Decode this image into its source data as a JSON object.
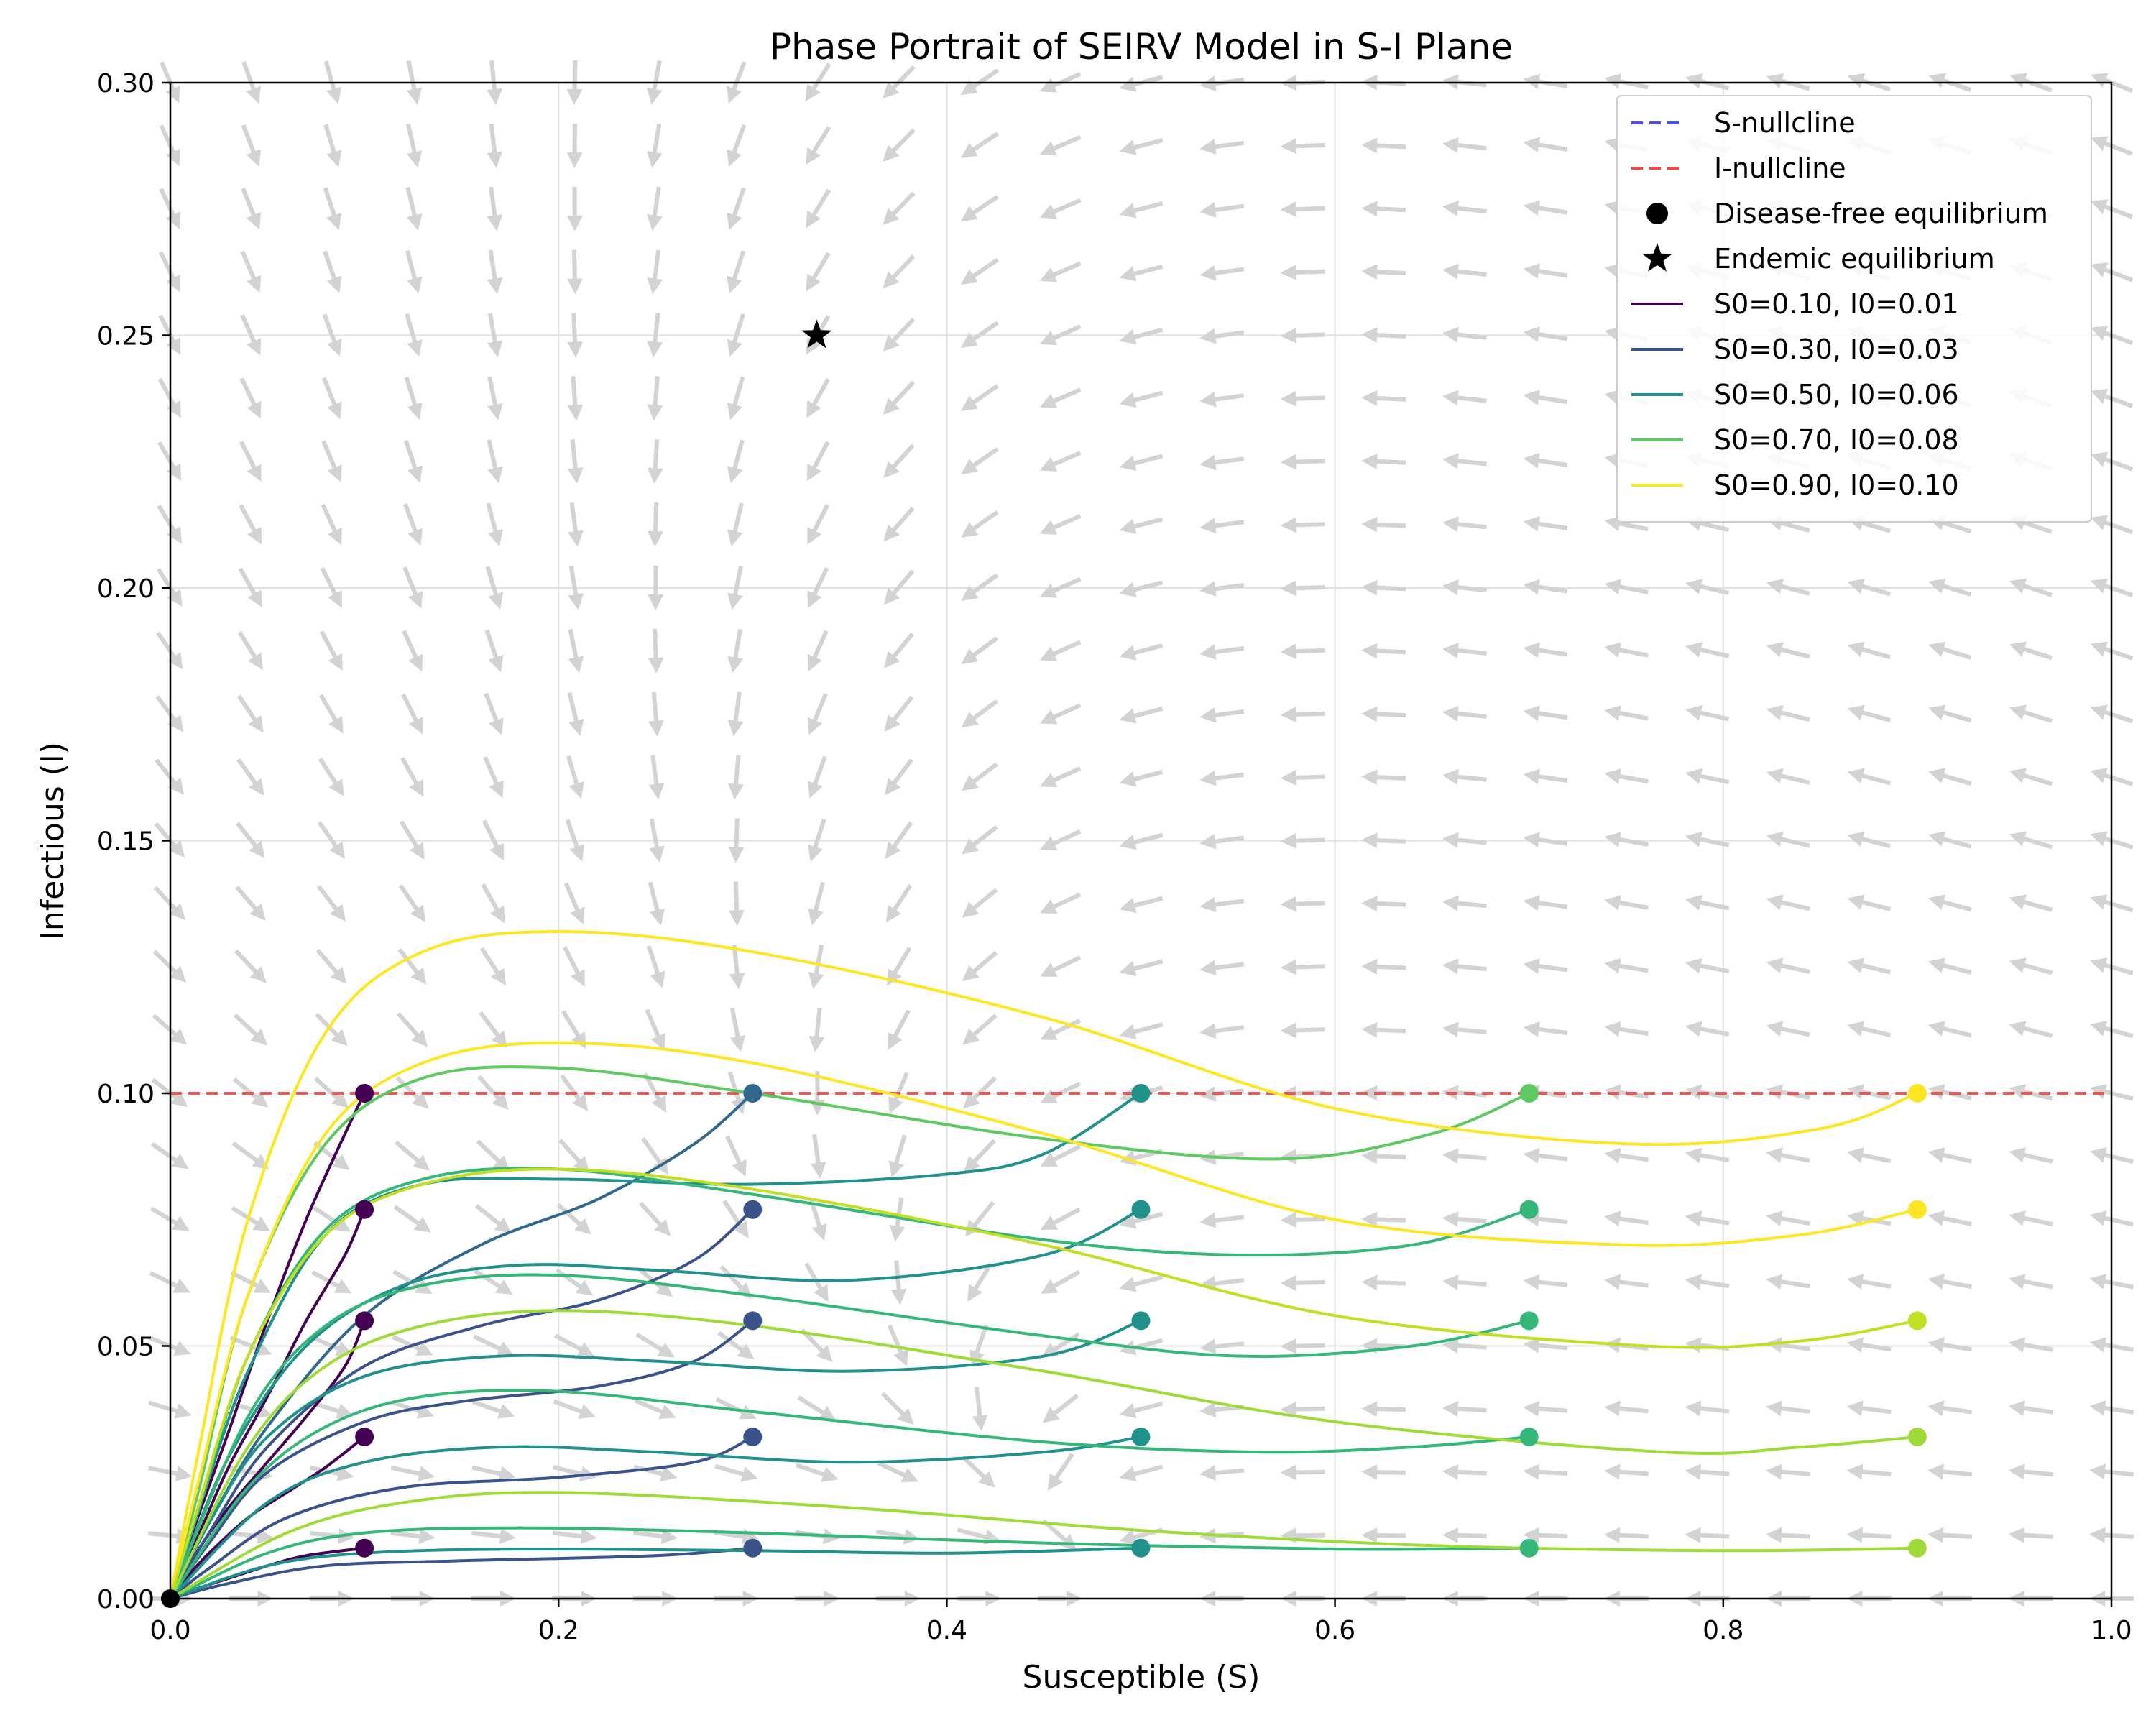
{
  "chart_data": {
    "type": "line",
    "title": "Phase Portrait of SEIRV Model in S-I Plane",
    "xlabel": "Susceptible (S)",
    "ylabel": "Infectious (I)",
    "xlim": [
      0,
      1
    ],
    "ylim": [
      0,
      0.3
    ],
    "xticks": [
      "0.0",
      "0.2",
      "0.4",
      "0.6",
      "0.8",
      "1.0"
    ],
    "xtick_values": [
      0,
      0.2,
      0.4,
      0.6,
      0.8,
      1.0
    ],
    "yticks": [
      "0.00",
      "0.05",
      "0.10",
      "0.15",
      "0.20",
      "0.25",
      "0.30"
    ],
    "ytick_values": [
      0,
      0.05,
      0.1,
      0.15,
      0.2,
      0.25,
      0.3
    ],
    "grid": true,
    "legend_position": "top-right",
    "legend": [
      {
        "label": "S-nullcline",
        "style": "dashed",
        "color": "#4d4dff"
      },
      {
        "label": "I-nullcline",
        "style": "dashed",
        "color": "#f04848"
      },
      {
        "label": "Disease-free equilibrium",
        "style": "circle",
        "color": "#000000"
      },
      {
        "label": "Endemic equilibrium",
        "style": "star",
        "color": "#000000"
      },
      {
        "label": "S0=0.10, I0=0.01",
        "style": "line",
        "color": "#440154"
      },
      {
        "label": "S0=0.30, I0=0.03",
        "style": "line",
        "color": "#3b528b"
      },
      {
        "label": "S0=0.50, I0=0.06",
        "style": "line",
        "color": "#21918c"
      },
      {
        "label": "S0=0.70, I0=0.08",
        "style": "line",
        "color": "#5ec962"
      },
      {
        "label": "S0=0.90, I0=0.10",
        "style": "line",
        "color": "#fde725"
      }
    ],
    "i_nullcline": {
      "y": 0.1,
      "color": "#f04848"
    },
    "disease_free_equilibrium": {
      "x": 0,
      "y": 0
    },
    "endemic_equilibrium": {
      "x": 0.333,
      "y": 0.25
    },
    "trajectories": [
      {
        "start": [
          0.1,
          0.1
        ],
        "color": "#440154",
        "points": [
          [
            0.1,
            0.1
          ],
          [
            0.09,
            0.092
          ],
          [
            0.07,
            0.075
          ],
          [
            0.05,
            0.055
          ],
          [
            0.03,
            0.033
          ],
          [
            0.015,
            0.017
          ],
          [
            0.005,
            0.006
          ],
          [
            0,
            0
          ]
        ]
      },
      {
        "start": [
          0.1,
          0.077
        ],
        "color": "#440154",
        "points": [
          [
            0.1,
            0.077
          ],
          [
            0.09,
            0.068
          ],
          [
            0.07,
            0.055
          ],
          [
            0.05,
            0.04
          ],
          [
            0.03,
            0.026
          ],
          [
            0.015,
            0.013
          ],
          [
            0.005,
            0.005
          ],
          [
            0,
            0
          ]
        ]
      },
      {
        "start": [
          0.1,
          0.055
        ],
        "color": "#440154",
        "points": [
          [
            0.1,
            0.055
          ],
          [
            0.09,
            0.046
          ],
          [
            0.07,
            0.036
          ],
          [
            0.05,
            0.027
          ],
          [
            0.03,
            0.018
          ],
          [
            0.015,
            0.01
          ],
          [
            0,
            0
          ]
        ]
      },
      {
        "start": [
          0.1,
          0.032
        ],
        "color": "#440154",
        "points": [
          [
            0.1,
            0.032
          ],
          [
            0.08,
            0.026
          ],
          [
            0.06,
            0.021
          ],
          [
            0.04,
            0.016
          ],
          [
            0.02,
            0.009
          ],
          [
            0.008,
            0.004
          ],
          [
            0,
            0
          ]
        ]
      },
      {
        "start": [
          0.1,
          0.01
        ],
        "color": "#440154",
        "points": [
          [
            0.1,
            0.01
          ],
          [
            0.07,
            0.0085
          ],
          [
            0.05,
            0.0065
          ],
          [
            0.03,
            0.004
          ],
          [
            0.01,
            0.0015
          ],
          [
            0,
            0
          ]
        ]
      },
      {
        "start": [
          0.3,
          0.1
        ],
        "color": "#31688e",
        "points": [
          [
            0.3,
            0.1
          ],
          [
            0.27,
            0.09
          ],
          [
            0.22,
            0.079
          ],
          [
            0.16,
            0.07
          ],
          [
            0.1,
            0.056
          ],
          [
            0.05,
            0.034
          ],
          [
            0.02,
            0.015
          ],
          [
            0,
            0
          ]
        ]
      },
      {
        "start": [
          0.3,
          0.077
        ],
        "color": "#3b528b",
        "points": [
          [
            0.3,
            0.077
          ],
          [
            0.27,
            0.067
          ],
          [
            0.22,
            0.059
          ],
          [
            0.16,
            0.054
          ],
          [
            0.1,
            0.046
          ],
          [
            0.05,
            0.03
          ],
          [
            0.02,
            0.013
          ],
          [
            0,
            0
          ]
        ]
      },
      {
        "start": [
          0.3,
          0.055
        ],
        "color": "#3b528b",
        "points": [
          [
            0.3,
            0.055
          ],
          [
            0.27,
            0.047
          ],
          [
            0.22,
            0.042
          ],
          [
            0.15,
            0.039
          ],
          [
            0.1,
            0.035
          ],
          [
            0.05,
            0.025
          ],
          [
            0.02,
            0.011
          ],
          [
            0,
            0
          ]
        ]
      },
      {
        "start": [
          0.3,
          0.032
        ],
        "color": "#3b528b",
        "points": [
          [
            0.3,
            0.032
          ],
          [
            0.27,
            0.027
          ],
          [
            0.2,
            0.024
          ],
          [
            0.12,
            0.022
          ],
          [
            0.06,
            0.016
          ],
          [
            0.02,
            0.006
          ],
          [
            0,
            0
          ]
        ]
      },
      {
        "start": [
          0.3,
          0.01
        ],
        "color": "#3b528b",
        "points": [
          [
            0.3,
            0.01
          ],
          [
            0.25,
            0.0085
          ],
          [
            0.15,
            0.0075
          ],
          [
            0.08,
            0.0065
          ],
          [
            0.03,
            0.003
          ],
          [
            0,
            0
          ]
        ]
      },
      {
        "start": [
          0.5,
          0.1
        ],
        "color": "#21918c",
        "points": [
          [
            0.5,
            0.1
          ],
          [
            0.45,
            0.088
          ],
          [
            0.4,
            0.084
          ],
          [
            0.3,
            0.082
          ],
          [
            0.2,
            0.083
          ],
          [
            0.13,
            0.082
          ],
          [
            0.08,
            0.072
          ],
          [
            0.04,
            0.045
          ],
          [
            0.015,
            0.018
          ],
          [
            0,
            0
          ]
        ]
      },
      {
        "start": [
          0.5,
          0.077
        ],
        "color": "#21918c",
        "points": [
          [
            0.5,
            0.077
          ],
          [
            0.45,
            0.068
          ],
          [
            0.35,
            0.063
          ],
          [
            0.25,
            0.065
          ],
          [
            0.18,
            0.066
          ],
          [
            0.12,
            0.062
          ],
          [
            0.07,
            0.05
          ],
          [
            0.03,
            0.028
          ],
          [
            0,
            0
          ]
        ]
      },
      {
        "start": [
          0.5,
          0.055
        ],
        "color": "#21918c",
        "points": [
          [
            0.5,
            0.055
          ],
          [
            0.45,
            0.048
          ],
          [
            0.35,
            0.045
          ],
          [
            0.25,
            0.047
          ],
          [
            0.17,
            0.048
          ],
          [
            0.1,
            0.044
          ],
          [
            0.05,
            0.032
          ],
          [
            0.02,
            0.015
          ],
          [
            0,
            0
          ]
        ]
      },
      {
        "start": [
          0.5,
          0.032
        ],
        "color": "#21918c",
        "points": [
          [
            0.5,
            0.032
          ],
          [
            0.45,
            0.029
          ],
          [
            0.35,
            0.027
          ],
          [
            0.25,
            0.029
          ],
          [
            0.17,
            0.03
          ],
          [
            0.1,
            0.027
          ],
          [
            0.05,
            0.019
          ],
          [
            0,
            0
          ]
        ]
      },
      {
        "start": [
          0.5,
          0.01
        ],
        "color": "#21918c",
        "points": [
          [
            0.5,
            0.01
          ],
          [
            0.4,
            0.009
          ],
          [
            0.3,
            0.0095
          ],
          [
            0.18,
            0.0098
          ],
          [
            0.1,
            0.009
          ],
          [
            0.05,
            0.0065
          ],
          [
            0,
            0
          ]
        ]
      },
      {
        "start": [
          0.7,
          0.1
        ],
        "color": "#5ec962",
        "points": [
          [
            0.7,
            0.1
          ],
          [
            0.65,
            0.092
          ],
          [
            0.57,
            0.087
          ],
          [
            0.45,
            0.091
          ],
          [
            0.3,
            0.1
          ],
          [
            0.2,
            0.105
          ],
          [
            0.13,
            0.103
          ],
          [
            0.08,
            0.09
          ],
          [
            0.04,
            0.06
          ],
          [
            0.015,
            0.022
          ],
          [
            0,
            0
          ]
        ]
      },
      {
        "start": [
          0.7,
          0.077
        ],
        "color": "#35b779",
        "points": [
          [
            0.7,
            0.077
          ],
          [
            0.64,
            0.07
          ],
          [
            0.55,
            0.068
          ],
          [
            0.45,
            0.071
          ],
          [
            0.3,
            0.08
          ],
          [
            0.2,
            0.085
          ],
          [
            0.13,
            0.083
          ],
          [
            0.08,
            0.073
          ],
          [
            0.04,
            0.048
          ],
          [
            0.015,
            0.018
          ],
          [
            0,
            0
          ]
        ]
      },
      {
        "start": [
          0.7,
          0.055
        ],
        "color": "#35b779",
        "points": [
          [
            0.7,
            0.055
          ],
          [
            0.64,
            0.05
          ],
          [
            0.55,
            0.048
          ],
          [
            0.45,
            0.052
          ],
          [
            0.3,
            0.06
          ],
          [
            0.2,
            0.064
          ],
          [
            0.13,
            0.062
          ],
          [
            0.08,
            0.054
          ],
          [
            0.04,
            0.036
          ],
          [
            0,
            0
          ]
        ]
      },
      {
        "start": [
          0.7,
          0.032
        ],
        "color": "#35b779",
        "points": [
          [
            0.7,
            0.032
          ],
          [
            0.64,
            0.03
          ],
          [
            0.56,
            0.029
          ],
          [
            0.45,
            0.031
          ],
          [
            0.3,
            0.037
          ],
          [
            0.2,
            0.041
          ],
          [
            0.13,
            0.04
          ],
          [
            0.08,
            0.034
          ],
          [
            0.04,
            0.022
          ],
          [
            0,
            0
          ]
        ]
      },
      {
        "start": [
          0.7,
          0.01
        ],
        "color": "#35b779",
        "points": [
          [
            0.7,
            0.01
          ],
          [
            0.6,
            0.0098
          ],
          [
            0.45,
            0.011
          ],
          [
            0.3,
            0.013
          ],
          [
            0.18,
            0.014
          ],
          [
            0.1,
            0.013
          ],
          [
            0.05,
            0.009
          ],
          [
            0,
            0
          ]
        ]
      },
      {
        "start": [
          0.9,
          0.1
        ],
        "color": "#fde725",
        "points": [
          [
            0.9,
            0.1
          ],
          [
            0.85,
            0.093
          ],
          [
            0.75,
            0.09
          ],
          [
            0.6,
            0.097
          ],
          [
            0.45,
            0.115
          ],
          [
            0.3,
            0.128
          ],
          [
            0.2,
            0.132
          ],
          [
            0.13,
            0.128
          ],
          [
            0.08,
            0.112
          ],
          [
            0.04,
            0.075
          ],
          [
            0.015,
            0.03
          ],
          [
            0,
            0
          ]
        ]
      },
      {
        "start": [
          0.9,
          0.077
        ],
        "color": "#fde725",
        "points": [
          [
            0.9,
            0.077
          ],
          [
            0.84,
            0.072
          ],
          [
            0.75,
            0.07
          ],
          [
            0.6,
            0.075
          ],
          [
            0.45,
            0.092
          ],
          [
            0.3,
            0.106
          ],
          [
            0.2,
            0.11
          ],
          [
            0.13,
            0.106
          ],
          [
            0.08,
            0.092
          ],
          [
            0.04,
            0.06
          ],
          [
            0.015,
            0.024
          ],
          [
            0,
            0
          ]
        ]
      },
      {
        "start": [
          0.9,
          0.055
        ],
        "color": "#c2df23",
        "points": [
          [
            0.9,
            0.055
          ],
          [
            0.84,
            0.051
          ],
          [
            0.76,
            0.05
          ],
          [
            0.6,
            0.056
          ],
          [
            0.45,
            0.07
          ],
          [
            0.3,
            0.081
          ],
          [
            0.2,
            0.085
          ],
          [
            0.13,
            0.082
          ],
          [
            0.08,
            0.072
          ],
          [
            0.04,
            0.048
          ],
          [
            0.015,
            0.019
          ],
          [
            0,
            0
          ]
        ]
      },
      {
        "start": [
          0.9,
          0.032
        ],
        "color": "#a0da39",
        "points": [
          [
            0.9,
            0.032
          ],
          [
            0.84,
            0.03
          ],
          [
            0.77,
            0.029
          ],
          [
            0.6,
            0.035
          ],
          [
            0.45,
            0.045
          ],
          [
            0.3,
            0.054
          ],
          [
            0.2,
            0.057
          ],
          [
            0.13,
            0.054
          ],
          [
            0.08,
            0.046
          ],
          [
            0.04,
            0.03
          ],
          [
            0,
            0
          ]
        ]
      },
      {
        "start": [
          0.9,
          0.01
        ],
        "color": "#a0da39",
        "points": [
          [
            0.9,
            0.01
          ],
          [
            0.8,
            0.0095
          ],
          [
            0.65,
            0.0105
          ],
          [
            0.5,
            0.0135
          ],
          [
            0.35,
            0.018
          ],
          [
            0.2,
            0.021
          ],
          [
            0.12,
            0.019
          ],
          [
            0.06,
            0.013
          ],
          [
            0,
            0
          ]
        ]
      }
    ]
  }
}
